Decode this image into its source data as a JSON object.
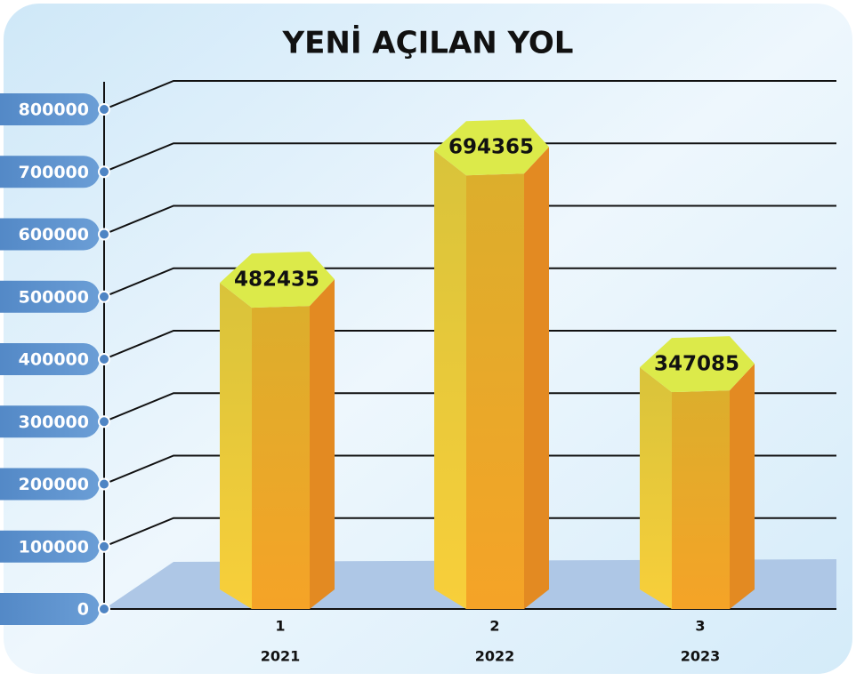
{
  "chart_data": {
    "type": "bar3d",
    "title": "YENİ AÇILAN YOL",
    "categories": [
      "2021",
      "2022",
      "2023"
    ],
    "category_numbers": [
      "1",
      "2",
      "3"
    ],
    "values": [
      482435,
      694365,
      347085
    ],
    "ylim": [
      0,
      800000
    ],
    "yticks": [
      0,
      100000,
      200000,
      300000,
      400000,
      500000,
      600000,
      700000,
      800000
    ],
    "grid": true,
    "color": "#f2b233"
  }
}
